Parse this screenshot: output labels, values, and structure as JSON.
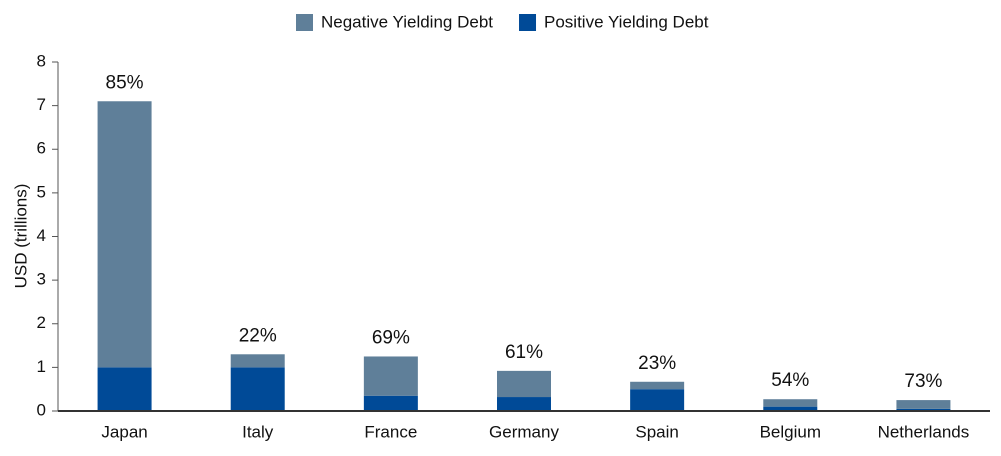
{
  "chart_data": {
    "type": "stacked_bar",
    "categories": [
      "Japan",
      "Italy",
      "France",
      "Germany",
      "Spain",
      "Belgium",
      "Netherlands"
    ],
    "series": [
      {
        "name": "Positive Yielding Debt",
        "color": "#004a97",
        "values": [
          1.0,
          1.0,
          0.35,
          0.32,
          0.5,
          0.1,
          0.05
        ]
      },
      {
        "name": "Negative Yielding Debt",
        "color": "#5f7f99",
        "values": [
          6.1,
          0.3,
          0.9,
          0.6,
          0.17,
          0.17,
          0.2
        ]
      }
    ],
    "annotations": [
      "85%",
      "22%",
      "69%",
      "61%",
      "23%",
      "54%",
      "73%"
    ],
    "y_label": "USD (trillions)",
    "ylim": [
      0,
      8
    ],
    "yticks": [
      0,
      1,
      2,
      3,
      4,
      5,
      6,
      7,
      8
    ],
    "grid": false,
    "legend": "top"
  }
}
